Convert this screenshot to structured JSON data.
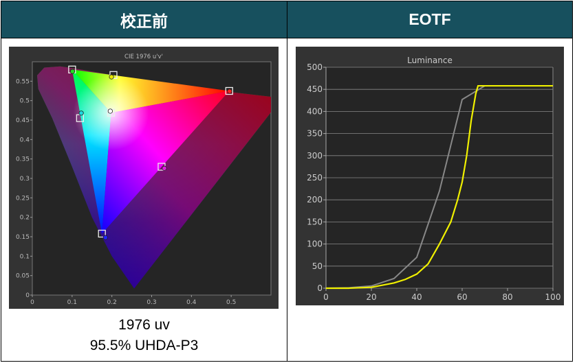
{
  "header": {
    "left_title": "校正前",
    "right_title": "EOTF"
  },
  "caption": {
    "line1": "1976 uv",
    "line2": "95.5% UHDA-P3"
  },
  "chart_data": [
    {
      "type": "scatter",
      "title": "CIE 1976 u'v'",
      "xlim": [
        0,
        0.6
      ],
      "ylim": [
        0,
        0.6
      ],
      "xticks": [
        "0",
        "0.1",
        "0.2",
        "0.3",
        "0.4",
        "0.5"
      ],
      "yticks": [
        "0",
        "0.05",
        "0.1",
        "0.15",
        "0.2",
        "0.25",
        "0.3",
        "0.35",
        "0.4",
        "0.45",
        "0.5",
        "0.55"
      ],
      "grid": false,
      "targets": [
        {
          "name": "green",
          "u": 0.1,
          "v": 0.58
        },
        {
          "name": "yellow",
          "u": 0.204,
          "v": 0.566
        },
        {
          "name": "red",
          "u": 0.495,
          "v": 0.525
        },
        {
          "name": "cyan",
          "u": 0.12,
          "v": 0.455
        },
        {
          "name": "white",
          "u": 0.198,
          "v": 0.469
        },
        {
          "name": "magenta",
          "u": 0.325,
          "v": 0.33
        },
        {
          "name": "blue",
          "u": 0.175,
          "v": 0.158
        }
      ],
      "measured": [
        {
          "name": "green",
          "u": 0.101,
          "v": 0.575,
          "color": "#22dd22"
        },
        {
          "name": "yellow",
          "u": 0.199,
          "v": 0.561,
          "color": "#e8e800"
        },
        {
          "name": "red",
          "u": 0.496,
          "v": 0.524,
          "color": "#ff2020"
        },
        {
          "name": "cyan",
          "u": 0.123,
          "v": 0.468,
          "color": "#20d8e0"
        },
        {
          "name": "white",
          "u": 0.196,
          "v": 0.473,
          "color": "#ffffff"
        },
        {
          "name": "magenta",
          "u": 0.332,
          "v": 0.326,
          "color": "#e020e0"
        },
        {
          "name": "blue",
          "u": 0.184,
          "v": 0.148,
          "color": "#2020ff"
        }
      ]
    },
    {
      "type": "line",
      "title": "Luminance",
      "xlim": [
        0,
        100
      ],
      "ylim": [
        0,
        500
      ],
      "xticks": [
        "0",
        "20",
        "40",
        "60",
        "80",
        "100"
      ],
      "yticks": [
        "0",
        "50",
        "100",
        "150",
        "200",
        "250",
        "300",
        "350",
        "400",
        "450",
        "500"
      ],
      "grid": true,
      "series": [
        {
          "color": "#888888",
          "x": [
            0,
            10,
            20,
            30,
            40,
            50,
            60,
            70,
            80,
            90,
            100
          ],
          "y": [
            0,
            1,
            5,
            22,
            70,
            220,
            427,
            458,
            458,
            458,
            458
          ]
        },
        {
          "color": "#f0f000",
          "x": [
            0,
            10,
            20,
            30,
            35,
            40,
            45,
            50,
            55,
            58,
            60,
            62,
            64,
            66,
            67,
            70,
            80,
            90,
            100
          ],
          "y": [
            0,
            0,
            2,
            12,
            20,
            32,
            55,
            100,
            150,
            200,
            240,
            300,
            380,
            440,
            458,
            458,
            458,
            458,
            458
          ]
        }
      ]
    }
  ]
}
